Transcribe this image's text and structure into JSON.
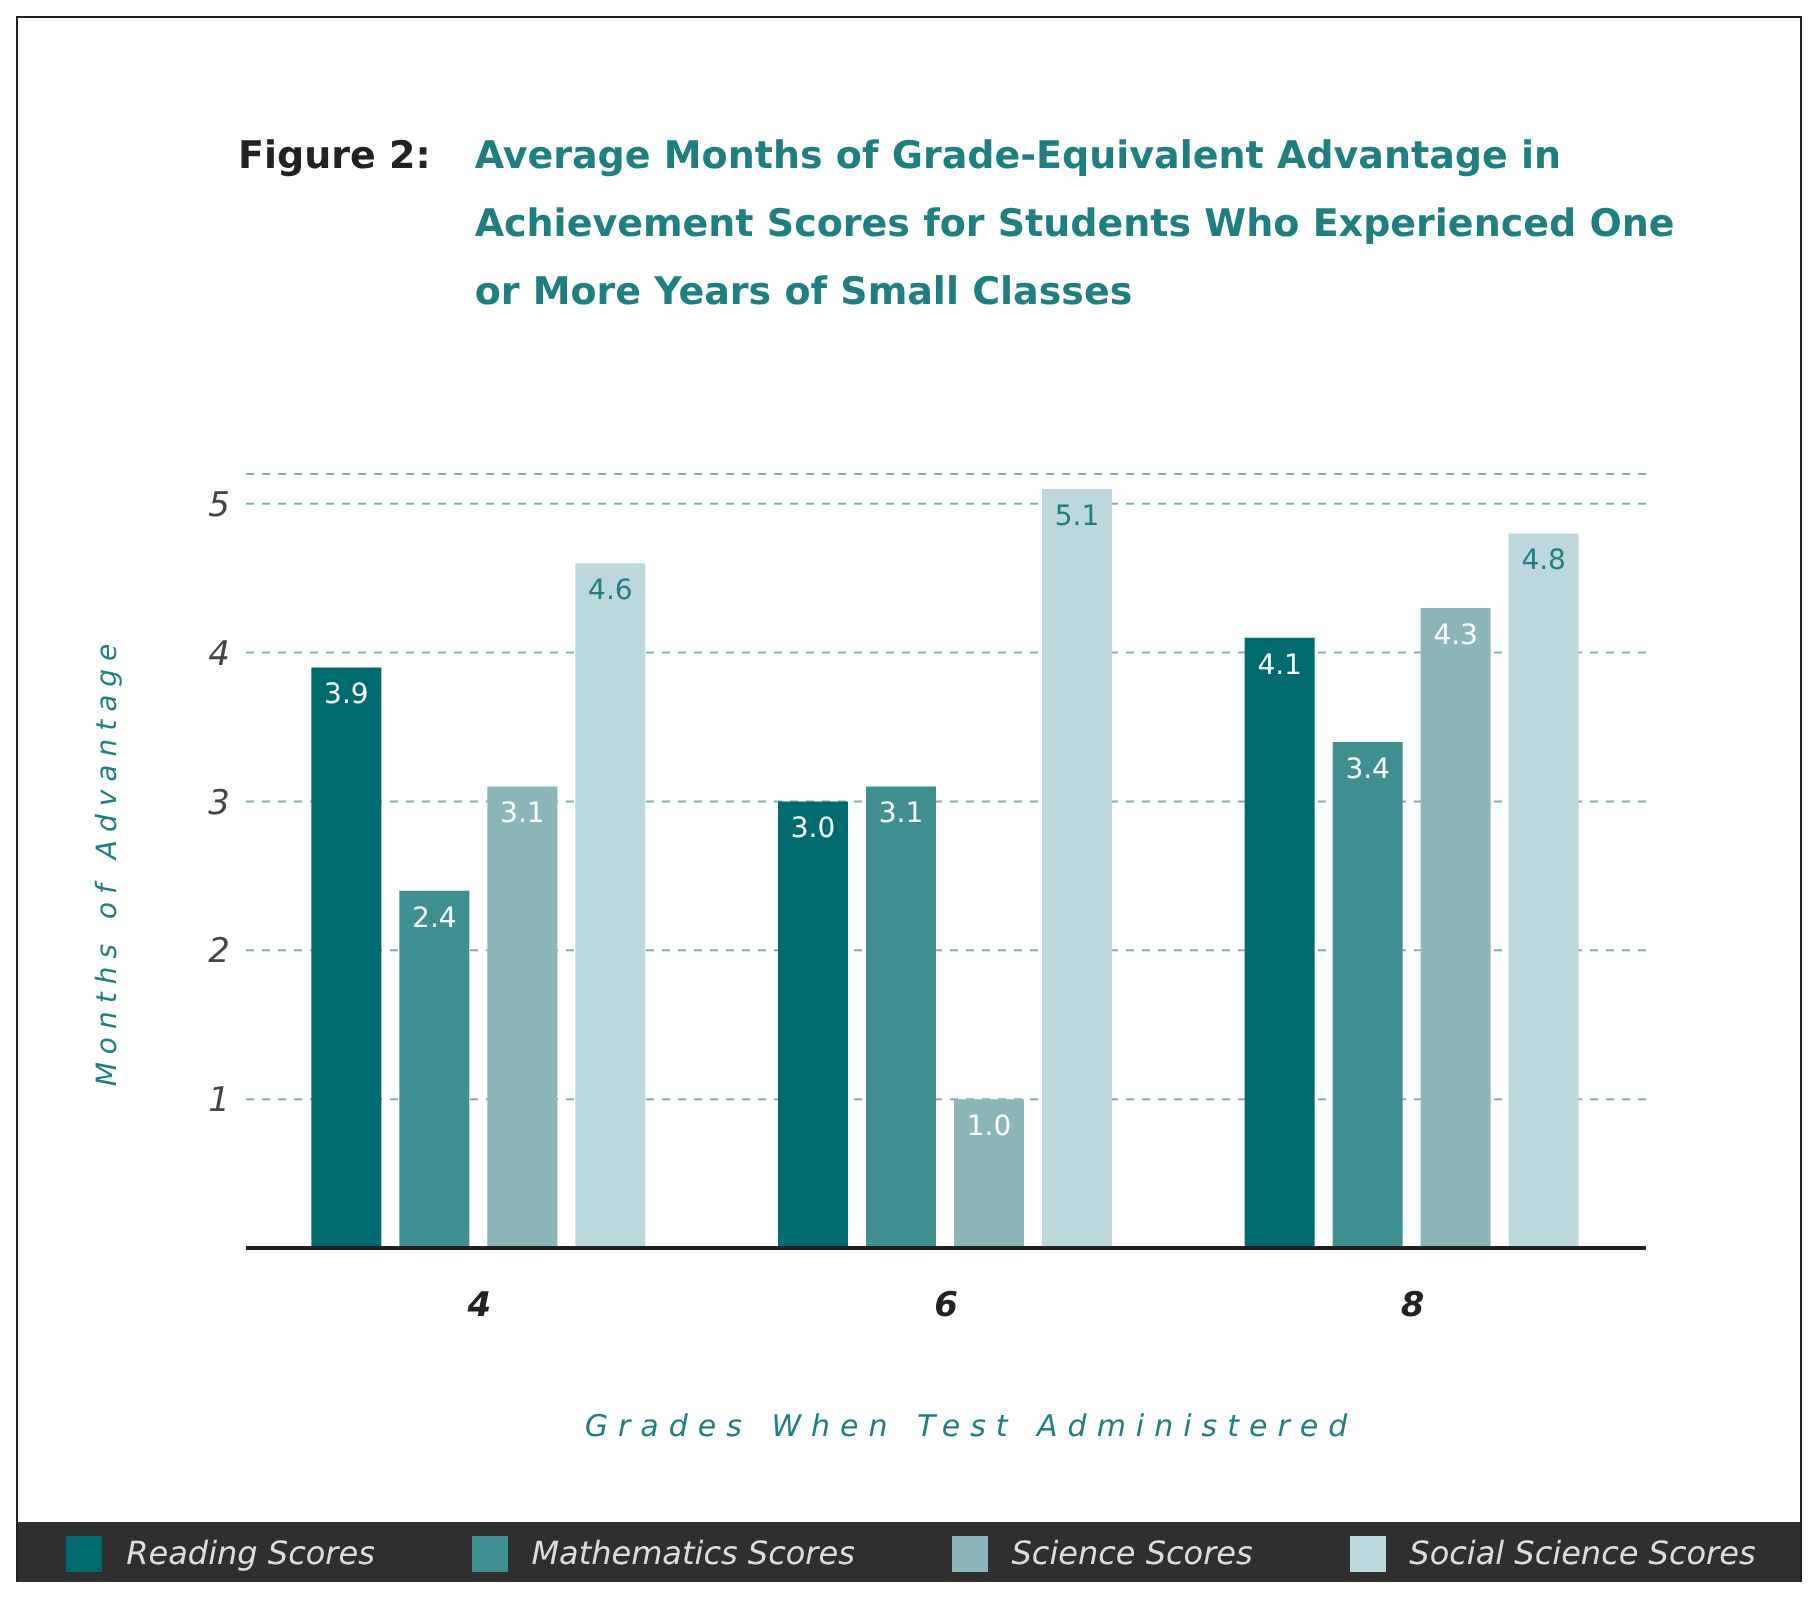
{
  "chart_data": {
    "type": "bar",
    "title": "Figure 2:",
    "subtitle": "Average Months of Grade-Equivalent Advantage in Achievement Scores for Students Who Experienced One or More Years of Small Classes",
    "xlabel": "Grades When Test Administered",
    "ylabel": "Months of Advantage",
    "categories": [
      "4",
      "6",
      "8"
    ],
    "series": [
      {
        "name": "Reading Scores",
        "color": "#006b6e",
        "values": [
          3.9,
          3.0,
          4.1
        ],
        "value_labels": [
          "3.9",
          "3.0",
          "4.1"
        ]
      },
      {
        "name": "Mathematics Scores",
        "color": "#3f8f91",
        "values": [
          2.4,
          3.1,
          3.4
        ],
        "value_labels": [
          "2.4",
          "3.1",
          "3.4"
        ]
      },
      {
        "name": "Science Scores",
        "color": "#8cb5ba",
        "values": [
          3.1,
          1.0,
          4.3
        ],
        "value_labels": [
          "3.1",
          "1.0",
          "4.3"
        ]
      },
      {
        "name": "Social Science Scores",
        "color": "#bcd8dc",
        "values": [
          4.6,
          5.1,
          4.8
        ],
        "value_labels": [
          "4.6",
          "5.1",
          "4.8"
        ]
      }
    ],
    "ylim": [
      0,
      5.2
    ],
    "yticks": [
      1,
      2,
      3,
      4,
      5
    ],
    "grid": "y",
    "legend": "bottom"
  }
}
